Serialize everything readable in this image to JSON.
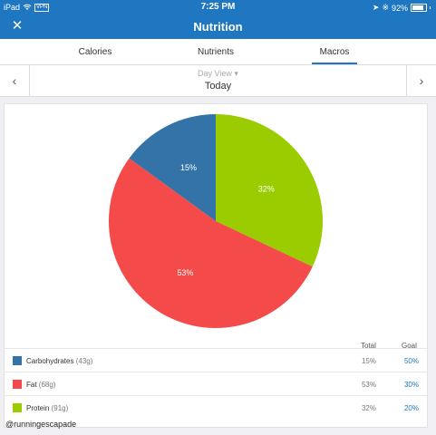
{
  "status_bar": {
    "carrier": "iPad",
    "network": "VPN",
    "time": "7:25 PM",
    "battery": "92%"
  },
  "navbar": {
    "title": "Nutrition",
    "close_icon": "close-icon"
  },
  "tabs": [
    {
      "label": "Calories",
      "active": false
    },
    {
      "label": "Nutrients",
      "active": false
    },
    {
      "label": "Macros",
      "active": true
    }
  ],
  "day_selector": {
    "view_label": "Day View",
    "date_label": "Today"
  },
  "colors": {
    "accent": "#1f77c2",
    "carbs": "#3373a8",
    "fat": "#f44a4a",
    "protein": "#9acc00"
  },
  "chart_data": {
    "type": "pie",
    "slices": [
      {
        "label": "Carbohydrates",
        "value": 15,
        "display": "15%",
        "color": "#3373a8"
      },
      {
        "label": "Fat",
        "value": 53,
        "display": "53%",
        "color": "#f44a4a"
      },
      {
        "label": "Protein",
        "value": 32,
        "display": "32%",
        "color": "#9acc00"
      }
    ]
  },
  "legend": {
    "total_header": "Total",
    "goal_header": "Goal",
    "rows": [
      {
        "name": "Carbohydrates",
        "grams": "(43g)",
        "total": "15%",
        "goal": "50%",
        "color": "#3373a8"
      },
      {
        "name": "Fat",
        "grams": "(68g)",
        "total": "53%",
        "goal": "30%",
        "color": "#f44a4a"
      },
      {
        "name": "Protein",
        "grams": "(91g)",
        "total": "32%",
        "goal": "20%",
        "color": "#9acc00"
      }
    ]
  },
  "watermark": "@runningescapade"
}
